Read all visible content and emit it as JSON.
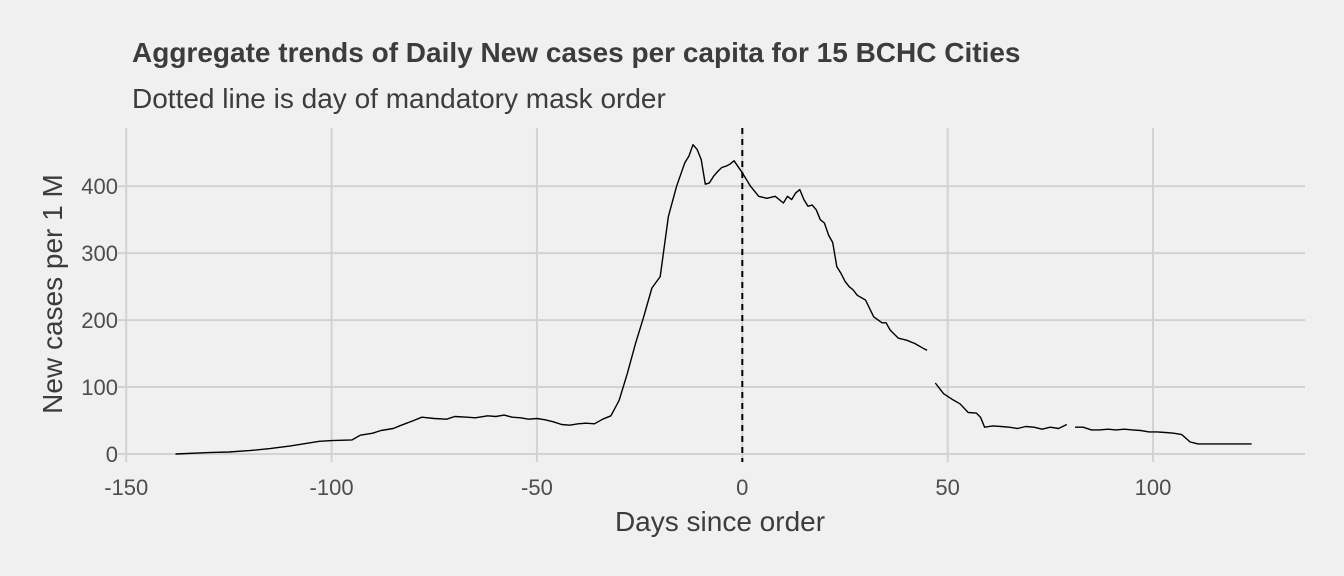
{
  "chart_data": {
    "type": "line",
    "title": "Aggregate trends of Daily New cases per capita for 15 BCHC Cities",
    "subtitle": "Dotted line is day of mandatory mask order",
    "xlabel": "Days since order",
    "ylabel": "New cases per 1 M",
    "xlim": [
      -152,
      137
    ],
    "ylim": [
      -12,
      487
    ],
    "x_ticks": [
      -150,
      -100,
      -50,
      0,
      50,
      100
    ],
    "x_tick_labels": [
      "-150",
      "-100",
      "-50",
      "0",
      "50",
      "100"
    ],
    "y_ticks": [
      0,
      100,
      200,
      300,
      400
    ],
    "y_tick_labels": [
      "0",
      "100",
      "200",
      "300",
      "400"
    ],
    "grid": true,
    "legend": "none",
    "reference_line": {
      "x": 0,
      "style": "dashed"
    },
    "colors": {
      "background": "#f0f0f0",
      "grid": "#d2d2d2",
      "line": "#000000"
    },
    "segments": [
      {
        "x": [
          -138,
          -130,
          -125,
          -120,
          -115,
          -110,
          -106,
          -103,
          -100,
          -95,
          -93,
          -90,
          -88,
          -85,
          -83,
          -80,
          -78,
          -75,
          -72,
          -70,
          -67,
          -65,
          -62,
          -60,
          -58,
          -56,
          -54,
          -52,
          -50,
          -48,
          -46,
          -44,
          -42,
          -40,
          -38,
          -36,
          -34,
          -32,
          -30,
          -28,
          -26,
          -24,
          -22,
          -20,
          -18,
          -16,
          -14,
          -13,
          -12,
          -11,
          -10,
          -9,
          -8,
          -7,
          -6,
          -5,
          -4,
          -3,
          -2,
          0,
          2,
          4,
          6,
          8,
          10,
          11,
          12,
          13,
          14,
          15,
          16,
          17,
          18,
          19,
          20,
          21,
          22,
          23,
          24,
          25,
          26,
          27,
          28,
          30,
          32,
          34,
          35,
          36,
          38,
          40,
          42,
          44,
          45
        ],
        "y": [
          0,
          2,
          3,
          5,
          8,
          12,
          16,
          19,
          20,
          21,
          28,
          31,
          35,
          38,
          43,
          50,
          55,
          53,
          52,
          56,
          55,
          54,
          57,
          56,
          58,
          55,
          54,
          52,
          53,
          51,
          48,
          44,
          43,
          45,
          46,
          45,
          52,
          57,
          80,
          120,
          165,
          205,
          248,
          265,
          355,
          400,
          435,
          445,
          462,
          455,
          440,
          403,
          405,
          415,
          422,
          428,
          430,
          433,
          438,
          420,
          400,
          385,
          382,
          385,
          375,
          385,
          380,
          390,
          395,
          380,
          370,
          372,
          365,
          350,
          345,
          327,
          316,
          280,
          270,
          258,
          250,
          245,
          237,
          230,
          205,
          196,
          196,
          185,
          173,
          170,
          165,
          158,
          155
        ]
      },
      {
        "x": [
          47,
          49,
          51,
          53,
          55,
          57,
          58,
          59,
          61,
          63,
          65,
          67,
          69,
          71,
          73,
          75,
          77,
          79
        ],
        "y": [
          106,
          90,
          82,
          75,
          62,
          61,
          55,
          40,
          42,
          41,
          40,
          38,
          41,
          40,
          37,
          40,
          38,
          44
        ]
      },
      {
        "x": [
          81,
          83,
          85,
          87,
          89,
          91,
          93,
          95,
          97,
          99,
          101,
          103,
          105,
          107,
          109,
          111,
          113,
          115,
          118,
          121,
          124
        ],
        "y": [
          40,
          40,
          36,
          36,
          37,
          36,
          37,
          36,
          35,
          33,
          33,
          32,
          31,
          29,
          18,
          15,
          15,
          15,
          15,
          15,
          15
        ]
      }
    ]
  }
}
